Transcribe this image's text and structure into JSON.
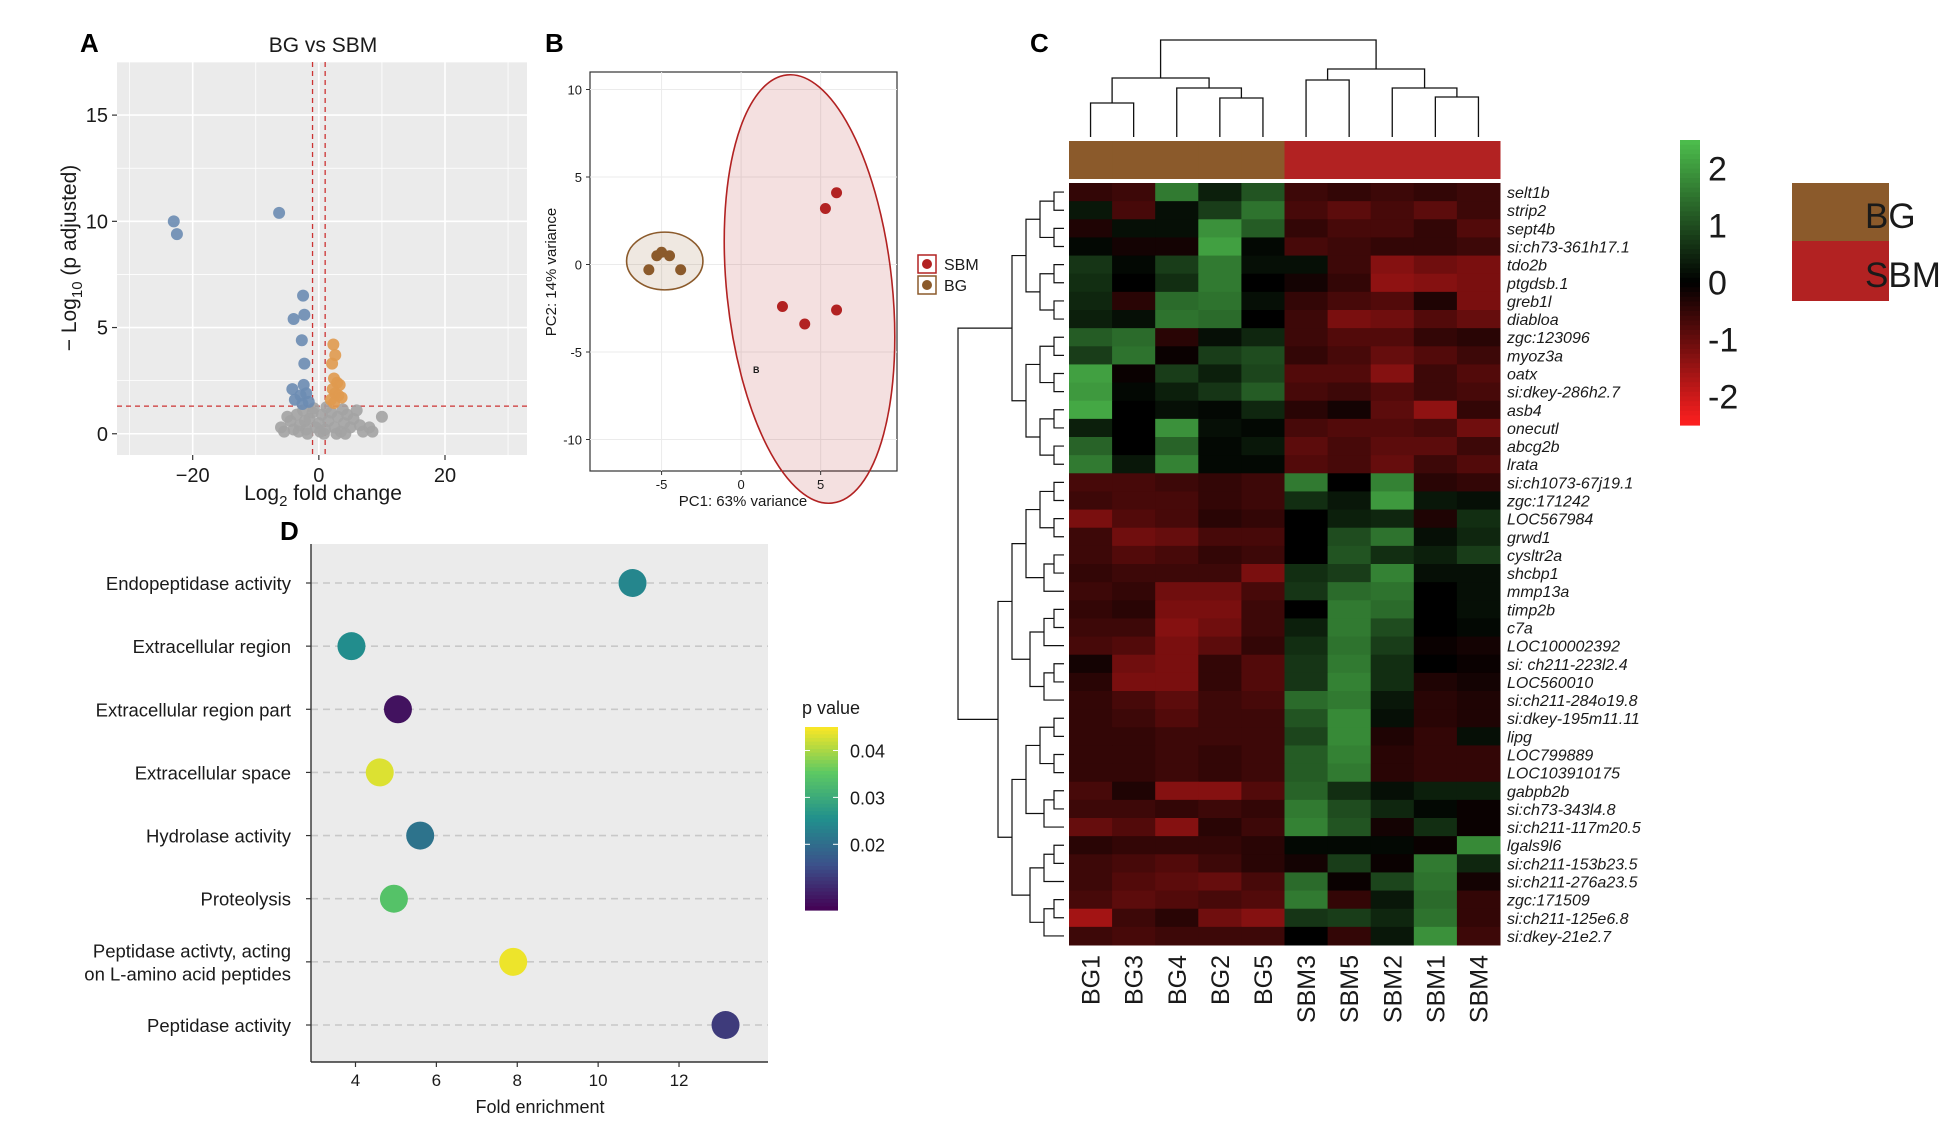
{
  "panels": {
    "a": "A",
    "b": "B",
    "c": "C",
    "d": "D"
  },
  "chart_data": [
    {
      "type": "scatter",
      "name": "volcano",
      "title": "BG vs SBM",
      "xlabel_main": "Log",
      "xlabel_sub": "2",
      "xlabel_rest": " fold change",
      "ylabel_main": "− Log",
      "ylabel_sub": "10",
      "ylabel_rest": " (p adjusted)",
      "xlim": [
        -32,
        33
      ],
      "ylim": [
        -1,
        17.5
      ],
      "xticks": [
        -20,
        0,
        20
      ],
      "yticks": [
        0,
        5,
        10,
        15
      ],
      "xtick_labels": [
        "−20",
        "0",
        "20"
      ],
      "ytick_labels": [
        "0",
        "5",
        "10",
        "15"
      ],
      "fc_threshold": 1,
      "p_threshold": 1.3,
      "colors": {
        "down": "#6b8cb2",
        "up": "#e09a4f",
        "ns": "#a3a3a3",
        "threshold": "#cc3333",
        "panel": "#ebebeb",
        "grid": "#ffffff"
      },
      "down": [
        [
          -23,
          10
        ],
        [
          -22.5,
          9.4
        ],
        [
          -6.3,
          10.4
        ],
        [
          -2.5,
          6.5
        ],
        [
          -2.3,
          5.6
        ],
        [
          -4,
          5.4
        ],
        [
          -2.7,
          4.4
        ],
        [
          -2.3,
          3.3
        ],
        [
          -4.2,
          2.1
        ],
        [
          -2.4,
          2.3
        ],
        [
          -2.0,
          1.9
        ],
        [
          -3.8,
          1.6
        ],
        [
          -2.9,
          1.8
        ],
        [
          -1.6,
          1.5
        ],
        [
          -2.6,
          1.4
        ]
      ],
      "up": [
        [
          2.3,
          4.2
        ],
        [
          2.6,
          3.7
        ],
        [
          2.1,
          3.3
        ],
        [
          2.4,
          2.6
        ],
        [
          2.9,
          2.4
        ],
        [
          3.3,
          2.3
        ],
        [
          2.2,
          2.1
        ],
        [
          2.6,
          1.9
        ],
        [
          3.1,
          1.8
        ],
        [
          1.9,
          1.6
        ],
        [
          3.6,
          1.7
        ],
        [
          2.4,
          1.45
        ]
      ],
      "ns": [
        [
          -6,
          0.3
        ],
        [
          -5.5,
          0.1
        ],
        [
          -4.5,
          0.6
        ],
        [
          -4,
          0.2
        ],
        [
          -3.5,
          0.9
        ],
        [
          -3,
          0.4
        ],
        [
          -2.5,
          1.1
        ],
        [
          -2,
          0.2
        ],
        [
          -1.5,
          0.7
        ],
        [
          -1,
          1.0
        ],
        [
          -0.5,
          0.3
        ],
        [
          0,
          0.5
        ],
        [
          0.5,
          0.9
        ],
        [
          1,
          0.2
        ],
        [
          1.5,
          0.6
        ],
        [
          2,
          1.0
        ],
        [
          2.5,
          0.3
        ],
        [
          3,
          0.8
        ],
        [
          3.5,
          0.1
        ],
        [
          4,
          0.5
        ],
        [
          4.5,
          0.9
        ],
        [
          5,
          0.3
        ],
        [
          5.5,
          0.7
        ],
        [
          6,
          1.1
        ],
        [
          7,
          0.1
        ],
        [
          8,
          0.3
        ],
        [
          8.5,
          0.1
        ],
        [
          10,
          0.8
        ],
        [
          -3.2,
          0.1
        ],
        [
          -1.8,
          0.0
        ],
        [
          0.8,
          0.0
        ],
        [
          2.8,
          0.0
        ],
        [
          -0.8,
          1.2
        ],
        [
          1.2,
          1.25
        ],
        [
          3.8,
          1.15
        ],
        [
          -2.2,
          0.6
        ],
        [
          6.5,
          0.4
        ],
        [
          -5,
          0.8
        ],
        [
          4.2,
          0.0
        ],
        [
          0.2,
          0.1
        ]
      ]
    },
    {
      "type": "scatter",
      "name": "pca",
      "xlabel": "PC1: 63% variance",
      "ylabel": "PC2: 14% variance",
      "xlim": [
        -9.5,
        9.8
      ],
      "ylim": [
        -11.8,
        11
      ],
      "xticks": [
        -5,
        0,
        5
      ],
      "yticks": [
        -10,
        -5,
        0,
        5,
        10
      ],
      "xtick_labels": [
        "-5",
        "0",
        "5"
      ],
      "ytick_labels": [
        "-10",
        "-5",
        "0",
        "5",
        "10"
      ],
      "legend": [
        {
          "label": "SBM",
          "color": "#b22222"
        },
        {
          "label": "BG",
          "color": "#8b5a2b"
        }
      ],
      "series": [
        {
          "name": "BG",
          "color": "#8b5a2b",
          "points": [
            [
              -5.8,
              -0.3
            ],
            [
              -5.3,
              0.5
            ],
            [
              -5.0,
              0.7
            ],
            [
              -4.5,
              0.5
            ],
            [
              -3.8,
              -0.3
            ]
          ]
        },
        {
          "name": "SBM",
          "color": "#b22222",
          "points": [
            [
              6.0,
              4.1
            ],
            [
              5.3,
              3.2
            ],
            [
              2.6,
              -2.4
            ],
            [
              4.0,
              -3.4
            ],
            [
              6.0,
              -2.6
            ]
          ]
        }
      ],
      "ellipses": [
        {
          "name": "BG",
          "cx": -4.8,
          "cy": 0.2,
          "rx": 2.4,
          "ry": 1.65,
          "angle": 0,
          "color": "#8b5a2b"
        },
        {
          "name": "SBM",
          "cx": 4.3,
          "cy": -1.4,
          "rx": 5.2,
          "ry": 12.3,
          "angle": -6,
          "color": "#b22222"
        }
      ],
      "annotation": "B"
    },
    {
      "type": "heatmap",
      "name": "heatmap",
      "columns": [
        "BG1",
        "BG3",
        "BG4",
        "BG2",
        "BG5",
        "SBM3",
        "SBM5",
        "SBM2",
        "SBM1",
        "SBM4"
      ],
      "column_groups": [
        "BG",
        "BG",
        "BG",
        "BG",
        "BG",
        "SBM",
        "SBM",
        "SBM",
        "SBM",
        "SBM"
      ],
      "group_colors": {
        "BG": "#8b5a2b",
        "SBM": "#b22222"
      },
      "group_legend": [
        {
          "label": "BG",
          "color": "#8b5a2b"
        },
        {
          "label": "SBM",
          "color": "#b22222"
        }
      ],
      "color_scale": {
        "min": -2.5,
        "max": 2.5,
        "ticks": [
          -2,
          -1,
          0,
          1,
          2
        ],
        "tick_labels": [
          "-2",
          "-1",
          "0",
          "1",
          "2"
        ]
      },
      "rows": [
        "selt1b",
        "strip2",
        "sept4b",
        "si:ch73-361h17.1",
        "tdo2b",
        "ptgdsb.1",
        "greb1l",
        "diabloa",
        "zgc:123096",
        "myoz3a",
        "oatx",
        "si:dkey-286h2.7",
        "asb4",
        "onecutl",
        "abcg2b",
        "lrata",
        "si:ch1073-67j19.1",
        "zgc:171242",
        "LOC567984",
        "grwd1",
        "cysltr2a",
        "shcbp1",
        "mmp13a",
        "timp2b",
        "c7a",
        "LOC100002392",
        "si: ch211-223l2.4",
        "LOC560010",
        "si:ch211-284o19.8",
        "si:dkey-195m11.11",
        "lipg",
        "LOC799889",
        "LOC103910175",
        "gabpb2b",
        "si:ch73-343l4.8",
        "si:ch211-117m20.5",
        "lgals9l6",
        "si:ch211-153b23.5",
        "si:ch211-276a23.5",
        "zgc:171509",
        "si:ch211-125e6.8",
        "si:dkey-21e2.7"
      ],
      "values": [
        [
          -0.5,
          -0.6,
          1.6,
          0.4,
          1.1,
          -0.6,
          -0.5,
          -0.6,
          -0.5,
          -0.6
        ],
        [
          0.3,
          -0.7,
          0.2,
          0.8,
          1.5,
          -0.7,
          -0.9,
          -0.7,
          -0.9,
          -0.6
        ],
        [
          -0.3,
          0.2,
          0.2,
          1.9,
          1.2,
          -0.5,
          -0.7,
          -0.7,
          -0.5,
          -0.8
        ],
        [
          0.1,
          -0.2,
          -0.2,
          2.1,
          0.1,
          -0.7,
          -0.6,
          -0.5,
          -0.5,
          -0.6
        ],
        [
          0.7,
          0.1,
          0.8,
          1.6,
          0.2,
          0.2,
          -0.6,
          -1.3,
          -1.1,
          -1.2
        ],
        [
          0.6,
          0.0,
          0.6,
          1.6,
          0.0,
          -0.2,
          -0.5,
          -1.4,
          -1.3,
          -1.2
        ],
        [
          0.5,
          -0.4,
          1.4,
          1.5,
          0.2,
          -0.5,
          -0.7,
          -0.8,
          -0.3,
          -1.2
        ],
        [
          0.4,
          0.2,
          1.5,
          1.4,
          0.0,
          -0.6,
          -1.2,
          -1.1,
          -0.8,
          -1.0
        ],
        [
          1.2,
          1.4,
          -0.4,
          0.2,
          0.5,
          -0.6,
          -0.8,
          -0.8,
          -0.5,
          -0.4
        ],
        [
          0.8,
          1.5,
          -0.1,
          0.8,
          1.0,
          -0.5,
          -0.7,
          -1.0,
          -0.8,
          -0.6
        ],
        [
          2.1,
          -0.1,
          0.8,
          0.4,
          0.9,
          -0.8,
          -0.8,
          -1.3,
          -0.6,
          -0.8
        ],
        [
          2.0,
          0.1,
          0.4,
          0.7,
          1.2,
          -0.7,
          -0.6,
          -0.8,
          -0.6,
          -0.7
        ],
        [
          2.2,
          0.0,
          0.2,
          0.1,
          0.5,
          -0.4,
          -0.2,
          -0.9,
          -1.4,
          -0.5
        ],
        [
          0.4,
          0.0,
          1.9,
          0.2,
          0.1,
          -0.7,
          -0.8,
          -0.8,
          -0.7,
          -1.1
        ],
        [
          1.3,
          0.0,
          1.3,
          0.1,
          0.3,
          -0.9,
          -0.7,
          -0.9,
          -0.9,
          -0.6
        ],
        [
          1.6,
          0.3,
          1.7,
          0.1,
          0.1,
          -0.8,
          -0.7,
          -1.0,
          -0.6,
          -0.8
        ],
        [
          -0.7,
          -0.7,
          -0.6,
          -0.5,
          -0.6,
          1.6,
          0.0,
          1.7,
          -0.4,
          -0.5
        ],
        [
          -0.6,
          -0.7,
          -0.7,
          -0.5,
          -0.6,
          0.6,
          0.3,
          2.0,
          0.3,
          0.2
        ],
        [
          -1.2,
          -0.8,
          -0.7,
          -0.4,
          -0.5,
          0.0,
          0.4,
          0.5,
          -0.3,
          0.6
        ],
        [
          -0.6,
          -1.1,
          -1.0,
          -0.7,
          -0.7,
          0.0,
          1.0,
          1.5,
          0.2,
          0.5
        ],
        [
          -0.6,
          -0.8,
          -0.7,
          -0.5,
          -0.6,
          0.0,
          1.1,
          0.6,
          0.4,
          0.8
        ],
        [
          -0.5,
          -0.6,
          -0.6,
          -0.6,
          -1.2,
          0.6,
          0.8,
          1.7,
          0.2,
          0.2
        ],
        [
          -0.6,
          -0.5,
          -1.1,
          -1.1,
          -0.7,
          0.7,
          1.4,
          1.5,
          0.0,
          0.2
        ],
        [
          -0.5,
          -0.4,
          -1.2,
          -1.2,
          -0.6,
          0.0,
          1.6,
          1.4,
          0.0,
          0.2
        ],
        [
          -0.6,
          -0.6,
          -1.3,
          -1.1,
          -0.6,
          0.4,
          1.6,
          1.0,
          0.0,
          0.1
        ],
        [
          -0.7,
          -0.8,
          -1.2,
          -0.9,
          -0.5,
          0.6,
          1.5,
          0.8,
          -0.1,
          -0.2
        ],
        [
          -0.2,
          -1.1,
          -1.2,
          -0.5,
          -0.8,
          0.7,
          1.6,
          0.6,
          0.0,
          -0.1
        ],
        [
          -0.4,
          -1.2,
          -1.2,
          -0.5,
          -0.8,
          0.7,
          1.7,
          0.6,
          -0.3,
          -0.2
        ],
        [
          -0.5,
          -0.7,
          -0.9,
          -0.6,
          -0.7,
          1.4,
          1.6,
          0.3,
          -0.4,
          -0.3
        ],
        [
          -0.5,
          -0.6,
          -0.8,
          -0.6,
          -0.6,
          1.1,
          1.8,
          0.2,
          -0.4,
          -0.3
        ],
        [
          -0.5,
          -0.5,
          -0.6,
          -0.6,
          -0.6,
          0.9,
          1.8,
          -0.3,
          -0.5,
          0.2
        ],
        [
          -0.5,
          -0.5,
          -0.6,
          -0.5,
          -0.6,
          1.2,
          1.7,
          -0.4,
          -0.5,
          -0.5
        ],
        [
          -0.5,
          -0.5,
          -0.6,
          -0.5,
          -0.6,
          1.2,
          1.6,
          -0.4,
          -0.5,
          -0.5
        ],
        [
          -0.7,
          -0.3,
          -1.3,
          -1.3,
          -0.8,
          1.3,
          0.6,
          0.2,
          0.4,
          0.4
        ],
        [
          -0.6,
          -0.6,
          -0.5,
          -0.6,
          -0.5,
          1.6,
          1.0,
          0.5,
          0.1,
          -0.1
        ],
        [
          -1.0,
          -0.8,
          -1.3,
          -0.4,
          -0.6,
          1.7,
          1.1,
          -0.2,
          0.6,
          -0.1
        ],
        [
          -0.4,
          -0.5,
          -0.5,
          -0.5,
          -0.4,
          0.1,
          0.1,
          0.1,
          -0.1,
          1.8
        ],
        [
          -0.6,
          -0.7,
          -0.8,
          -0.6,
          -0.4,
          -0.2,
          0.8,
          -0.1,
          1.6,
          0.5
        ],
        [
          -0.6,
          -0.8,
          -0.9,
          -1.0,
          -0.7,
          1.4,
          -0.1,
          0.9,
          1.5,
          -0.2
        ],
        [
          -0.7,
          -0.9,
          -0.8,
          -0.7,
          -0.8,
          1.6,
          -0.5,
          0.3,
          1.4,
          -0.5
        ],
        [
          -1.6,
          -0.6,
          -0.4,
          -1.1,
          -1.3,
          0.7,
          0.8,
          0.5,
          1.5,
          -0.5
        ],
        [
          -0.6,
          -0.7,
          -0.6,
          -0.6,
          -0.6,
          0.0,
          -0.5,
          0.3,
          1.9,
          -0.6
        ]
      ]
    },
    {
      "type": "scatter",
      "name": "enrichment",
      "xlabel": "Fold enrichment",
      "xlim": [
        2.9,
        14.2
      ],
      "xticks": [
        4,
        6,
        8,
        10,
        12
      ],
      "xtick_labels": [
        "4",
        "6",
        "8",
        "10",
        "12"
      ],
      "legend_title": "p value",
      "color_scale": {
        "min": 0.006,
        "max": 0.045,
        "ticks": [
          0.02,
          0.03,
          0.04
        ],
        "tick_labels": [
          "0.02",
          "0.03",
          "0.04"
        ]
      },
      "terms": [
        {
          "label": [
            "Endopeptidase activity"
          ],
          "fold": 10.85,
          "p": 0.024
        },
        {
          "label": [
            "Extracellular region"
          ],
          "fold": 3.9,
          "p": 0.025
        },
        {
          "label": [
            "Extracellular region part"
          ],
          "fold": 5.05,
          "p": 0.008
        },
        {
          "label": [
            "Extracellular space"
          ],
          "fold": 4.6,
          "p": 0.043
        },
        {
          "label": [
            "Hydrolase activity"
          ],
          "fold": 5.6,
          "p": 0.021
        },
        {
          "label": [
            "Proteolysis"
          ],
          "fold": 4.95,
          "p": 0.034
        },
        {
          "label": [
            "Peptidase activty, acting",
            "on L-amino acid peptides"
          ],
          "fold": 7.9,
          "p": 0.044
        },
        {
          "label": [
            "Peptidase activity"
          ],
          "fold": 13.15,
          "p": 0.013
        }
      ]
    }
  ]
}
